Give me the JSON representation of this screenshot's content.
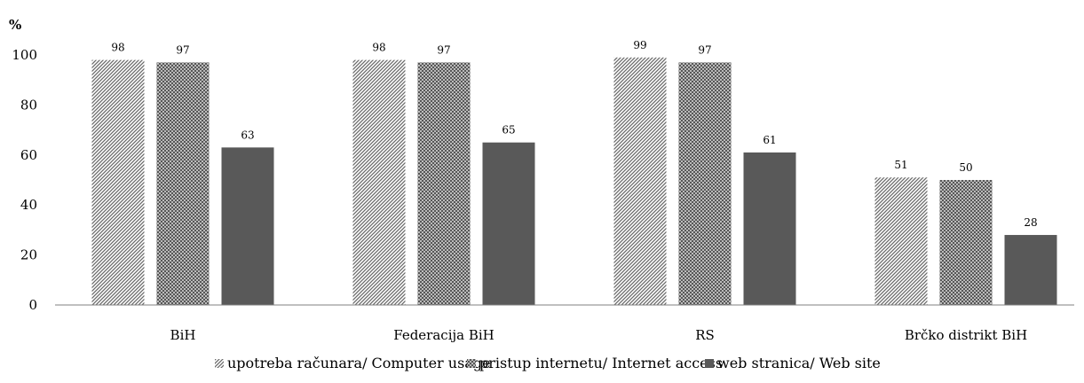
{
  "chart_data": {
    "type": "bar",
    "y_unit": "%",
    "categories": [
      "BiH",
      "Federacija BiH",
      "RS",
      "Brčko distrikt BiH"
    ],
    "series": [
      {
        "name": "upotreba računara/ Computer usage",
        "values": [
          98,
          98,
          99,
          51
        ],
        "pattern": "diagonal-stripes",
        "color": "#555555"
      },
      {
        "name": "pristup internetu/ Internet access",
        "values": [
          97,
          97,
          97,
          50
        ],
        "pattern": "crosshatch",
        "color": "#555555"
      },
      {
        "name": "web stranica/ Web site",
        "values": [
          63,
          65,
          61,
          28
        ],
        "pattern": "solid",
        "color": "#595959"
      }
    ],
    "ylim": [
      0,
      100
    ],
    "yticks": [
      0,
      20,
      40,
      60,
      80,
      100
    ],
    "grid": false,
    "legend_position": "bottom"
  }
}
